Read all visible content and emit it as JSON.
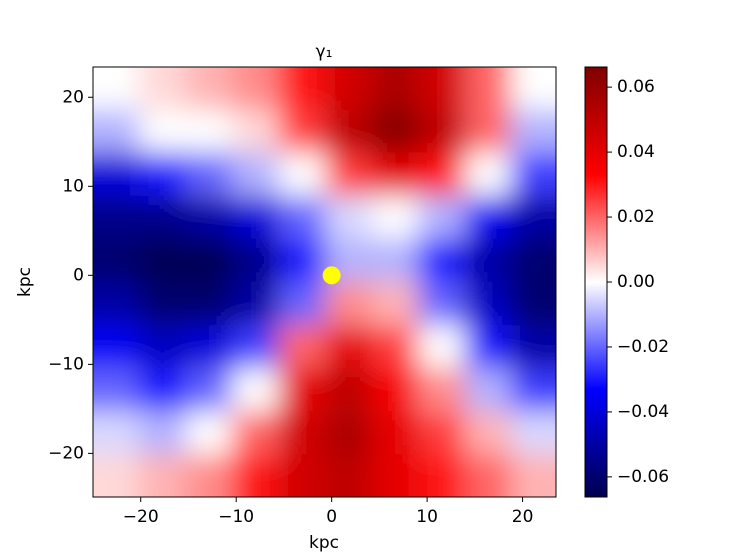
{
  "chart_data": {
    "type": "heatmap",
    "title": "γ₁",
    "xlabel": "kpc",
    "ylabel": "kpc",
    "xlim": [
      -25,
      23.5
    ],
    "ylim": [
      -24.9,
      23.4
    ],
    "xticks": [
      {
        "value": -20,
        "label": "−20"
      },
      {
        "value": -10,
        "label": "−10"
      },
      0,
      10,
      20
    ],
    "yticks": [
      {
        "value": -20,
        "label": "−20"
      },
      {
        "value": -10,
        "label": "−10"
      },
      0,
      10,
      20
    ],
    "x": [
      -22.6,
      -17.7,
      -12.8,
      -8,
      -3.1,
      1.8,
      6.6,
      11.5,
      16.4,
      21.2
    ],
    "y": [
      21,
      16.2,
      11.4,
      6.5,
      1.7,
      -3.1,
      -8,
      -12.8,
      -17.7,
      -22.5
    ],
    "z": [
      [
        0.0,
        0.005,
        0.01,
        0.015,
        0.03,
        0.045,
        0.055,
        0.045,
        0.02,
        0.0
      ],
      [
        -0.01,
        0.0,
        0.0,
        0.005,
        0.025,
        0.05,
        0.065,
        0.05,
        0.02,
        -0.01
      ],
      [
        -0.04,
        -0.03,
        -0.02,
        -0.01,
        0.0,
        0.025,
        0.04,
        0.03,
        0.0,
        -0.025
      ],
      [
        -0.055,
        -0.055,
        -0.05,
        -0.04,
        -0.02,
        -0.005,
        0.0,
        -0.01,
        -0.035,
        -0.05
      ],
      [
        -0.06,
        -0.065,
        -0.065,
        -0.055,
        -0.03,
        -0.01,
        -0.01,
        -0.03,
        -0.05,
        -0.06
      ],
      [
        -0.05,
        -0.06,
        -0.06,
        -0.05,
        -0.02,
        0.015,
        0.01,
        -0.02,
        -0.045,
        -0.06
      ],
      [
        -0.035,
        -0.045,
        -0.04,
        -0.025,
        0.02,
        0.04,
        0.025,
        0.0,
        -0.03,
        -0.05
      ],
      [
        -0.02,
        -0.03,
        -0.02,
        0.0,
        0.04,
        0.05,
        0.035,
        0.015,
        -0.01,
        -0.025
      ],
      [
        -0.005,
        -0.01,
        0.0,
        0.02,
        0.045,
        0.055,
        0.04,
        0.025,
        0.01,
        -0.005
      ],
      [
        0.005,
        0.01,
        0.015,
        0.03,
        0.045,
        0.05,
        0.04,
        0.03,
        0.02,
        0.01
      ]
    ],
    "zlim": [
      -0.0662,
      0.0662
    ],
    "colorbar_ticks": [
      {
        "value": -0.06,
        "label": "−0.06"
      },
      {
        "value": -0.04,
        "label": "−0.04"
      },
      {
        "value": -0.02,
        "label": "−0.02"
      },
      {
        "value": 0,
        "label": "0.00"
      },
      0.02,
      0.04,
      0.06
    ],
    "marker": {
      "x": 0,
      "y": 0,
      "color": "#ffff00"
    }
  }
}
